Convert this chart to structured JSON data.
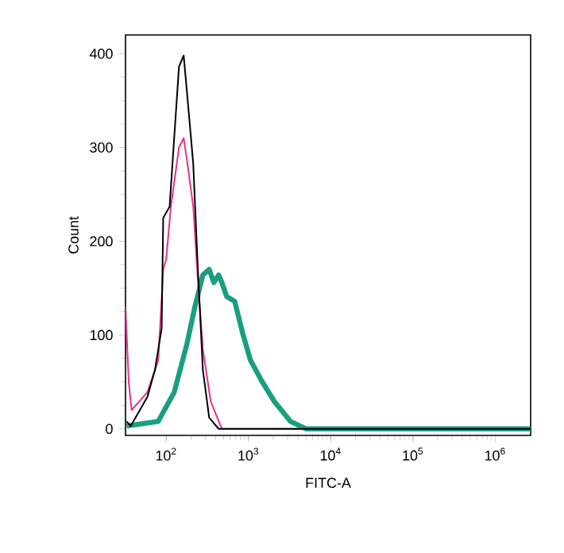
{
  "chart_data": {
    "type": "line",
    "xlabel": "FITC-A",
    "ylabel": "Count",
    "log": "x",
    "xlim": [
      32,
      2700000
    ],
    "ylim": [
      -7,
      420
    ],
    "xticks": [
      {
        "value": 100,
        "label": "10$^{2}$"
      },
      {
        "value": 1000,
        "label": "10$^{3}$"
      },
      {
        "value": 10000,
        "label": "10$^{4}$"
      },
      {
        "value": 100000,
        "label": "10$^{5}$"
      },
      {
        "value": 1000000,
        "label": "10$^{6}$"
      }
    ],
    "yticks": [
      0,
      100,
      200,
      300,
      400
    ],
    "marker": "none",
    "line_style": "solid",
    "grid": false,
    "series": [
      {
        "color": "#1a9e82",
        "x": [
          33,
          80,
          125,
          178,
          223,
          279,
          333,
          380,
          434,
          475,
          544,
          680,
          850,
          1060,
          1450,
          2070,
          3240,
          5000,
          100000,
          2700000
        ],
        "values": [
          3,
          8,
          39,
          90,
          130,
          164,
          170,
          156,
          164,
          156,
          141,
          136,
          102,
          73,
          51,
          29,
          8,
          0,
          0,
          0
        ]
      },
      {
        "color": "#e8308a",
        "x": [
          32,
          35,
          38,
          59,
          80,
          92,
          100,
          114,
          143,
          163,
          178,
          213,
          243,
          279,
          348,
          475,
          1000,
          2700000
        ],
        "values": [
          130,
          50,
          20,
          39,
          73,
          170,
          181,
          237,
          300,
          310,
          288,
          237,
          158,
          85,
          29,
          0,
          0,
          0
        ]
      },
      {
        "color": "#000000",
        "x": [
          33,
          37,
          59,
          73,
          88,
          92,
          110,
          125,
          143,
          163,
          178,
          213,
          243,
          279,
          333,
          434,
          1000,
          2700000
        ],
        "values": [
          8,
          3,
          34,
          63,
          107,
          225,
          237,
          310,
          386,
          398,
          361,
          283,
          169,
          63,
          12,
          0,
          0,
          0
        ]
      }
    ]
  }
}
